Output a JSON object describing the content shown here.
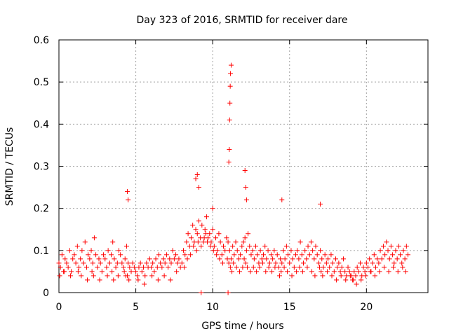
{
  "chart_data": {
    "type": "scatter",
    "title": "Day 323 of 2016, SRMTID for receiver dare",
    "xlabel": "GPS time / hours",
    "ylabel": "SRMTID / TECUs",
    "xlim": [
      0,
      24
    ],
    "ylim": [
      0,
      0.6
    ],
    "x_ticks": [
      0,
      5,
      10,
      15,
      20
    ],
    "x_tick_labels": [
      "0",
      "5",
      "10",
      "15",
      "20"
    ],
    "y_ticks": [
      0,
      0.1,
      0.2,
      0.3,
      0.4,
      0.5,
      0.6
    ],
    "y_tick_labels": [
      "0",
      "0.1",
      "0.2",
      "0.3",
      "0.4",
      "0.5",
      "0.6"
    ],
    "grid": true,
    "marker": "+",
    "series": [
      {
        "name": "SRMTID",
        "color": "#ff0000",
        "x": [
          0.0,
          0.1,
          0.2,
          0.3,
          0.4,
          0.5,
          0.6,
          0.7,
          0.8,
          0.9,
          1.0,
          1.1,
          1.2,
          1.3,
          1.4,
          1.5,
          1.6,
          1.7,
          1.8,
          1.9,
          2.0,
          2.1,
          2.2,
          2.3,
          2.4,
          2.5,
          2.6,
          2.7,
          2.8,
          2.9,
          3.0,
          3.1,
          3.2,
          3.3,
          3.4,
          3.5,
          3.6,
          3.7,
          3.8,
          3.9,
          4.0,
          4.1,
          4.2,
          4.3,
          4.4,
          4.5,
          4.6,
          4.7,
          4.8,
          4.9,
          5.0,
          5.1,
          5.2,
          5.3,
          5.4,
          5.5,
          5.6,
          5.7,
          5.8,
          5.9,
          6.0,
          6.1,
          6.2,
          6.3,
          6.4,
          6.5,
          6.6,
          6.7,
          6.8,
          6.9,
          7.0,
          7.1,
          7.2,
          7.3,
          7.4,
          7.5,
          7.6,
          7.7,
          7.8,
          7.9,
          8.0,
          8.1,
          8.2,
          8.3,
          8.4,
          8.5,
          8.6,
          8.7,
          8.8,
          8.9,
          9.0,
          9.1,
          9.2,
          9.3,
          9.4,
          9.5,
          9.6,
          9.7,
          9.8,
          9.9,
          10.0,
          10.1,
          10.2,
          10.3,
          10.4,
          10.5,
          10.6,
          10.7,
          10.8,
          10.9,
          11.0,
          11.1,
          11.2,
          11.3,
          11.4,
          11.5,
          11.6,
          11.7,
          11.8,
          11.9,
          12.0,
          12.1,
          12.2,
          12.3,
          12.4,
          12.5,
          12.6,
          12.7,
          12.8,
          12.9,
          13.0,
          13.1,
          13.2,
          13.3,
          13.4,
          13.5,
          13.6,
          13.7,
          13.8,
          13.9,
          14.0,
          14.1,
          14.2,
          14.3,
          14.4,
          14.5,
          14.6,
          14.7,
          14.8,
          14.9,
          15.0,
          15.1,
          15.2,
          15.3,
          15.4,
          15.5,
          15.6,
          15.7,
          15.8,
          15.9,
          16.0,
          16.1,
          16.2,
          16.3,
          16.4,
          16.5,
          16.6,
          16.7,
          16.8,
          16.9,
          17.0,
          17.1,
          17.2,
          17.3,
          17.4,
          17.5,
          17.6,
          17.7,
          17.8,
          17.9,
          18.0,
          18.1,
          18.2,
          18.3,
          18.4,
          18.5,
          18.6,
          18.7,
          18.8,
          18.9,
          19.0,
          19.1,
          19.2,
          19.3,
          19.4,
          19.5,
          19.6,
          19.7,
          19.8,
          19.9,
          20.0,
          20.1,
          20.2,
          20.3,
          20.4,
          20.5,
          20.6,
          20.7,
          20.8,
          20.9,
          21.0,
          21.1,
          21.2,
          21.3,
          21.4,
          21.5,
          21.6,
          21.7,
          21.8,
          21.9,
          22.0,
          22.1,
          22.2,
          22.3,
          22.4,
          22.5,
          22.6,
          22.7,
          0.05,
          0.35,
          0.75,
          1.25,
          1.45,
          1.85,
          2.15,
          2.25,
          2.65,
          3.15,
          3.45,
          3.55,
          3.85,
          4.25,
          4.35,
          4.45,
          4.55,
          5.15,
          5.55,
          6.05,
          6.45,
          6.85,
          7.25,
          7.65,
          8.15,
          8.35,
          8.55,
          8.75,
          8.95,
          9.05,
          9.25,
          9.45,
          9.55,
          9.65,
          9.85,
          10.05,
          10.25,
          10.45,
          10.65,
          10.95,
          11.05,
          11.15,
          11.25,
          11.35,
          11.55,
          11.75,
          11.95,
          12.05,
          12.15,
          12.25,
          12.45,
          12.65,
          12.85,
          13.05,
          13.25,
          13.45,
          13.65,
          13.85,
          14.05,
          14.35,
          14.45,
          14.65,
          14.85,
          15.15,
          15.45,
          15.65,
          15.85,
          16.15,
          16.45,
          16.65,
          16.95,
          17.05,
          17.15,
          17.45,
          17.75,
          18.05,
          18.35,
          18.65,
          18.95,
          19.15,
          19.35,
          19.65,
          19.95,
          20.25,
          20.55,
          20.85,
          21.15,
          21.45,
          21.75,
          22.05,
          22.35,
          22.55,
          4.45,
          4.5,
          8.9,
          9.0,
          9.1,
          11.05,
          11.08,
          11.1,
          11.12,
          11.14,
          11.16,
          11.2,
          12.1,
          12.15,
          12.2,
          9.25,
          11.0,
          14.5,
          17.0,
          10.0
        ],
        "y": [
          0.07,
          0.06,
          0.09,
          0.05,
          0.08,
          0.07,
          0.06,
          0.1,
          0.05,
          0.08,
          0.09,
          0.07,
          0.11,
          0.06,
          0.08,
          0.1,
          0.07,
          0.12,
          0.06,
          0.09,
          0.08,
          0.1,
          0.07,
          0.13,
          0.09,
          0.06,
          0.08,
          0.07,
          0.05,
          0.09,
          0.08,
          0.06,
          0.1,
          0.07,
          0.09,
          0.12,
          0.08,
          0.06,
          0.07,
          0.1,
          0.09,
          0.07,
          0.06,
          0.08,
          0.11,
          0.07,
          0.06,
          0.05,
          0.07,
          0.06,
          0.05,
          0.04,
          0.06,
          0.07,
          0.05,
          0.06,
          0.04,
          0.07,
          0.06,
          0.08,
          0.06,
          0.07,
          0.05,
          0.08,
          0.06,
          0.09,
          0.07,
          0.06,
          0.08,
          0.07,
          0.09,
          0.06,
          0.08,
          0.07,
          0.1,
          0.08,
          0.09,
          0.07,
          0.08,
          0.06,
          0.07,
          0.1,
          0.09,
          0.12,
          0.14,
          0.11,
          0.13,
          0.16,
          0.12,
          0.15,
          0.14,
          0.17,
          0.13,
          0.16,
          0.12,
          0.15,
          0.18,
          0.13,
          0.14,
          0.12,
          0.15,
          0.11,
          0.13,
          0.1,
          0.14,
          0.12,
          0.09,
          0.11,
          0.1,
          0.13,
          0.12,
          0.1,
          0.08,
          0.11,
          0.09,
          0.12,
          0.1,
          0.08,
          0.09,
          0.11,
          0.12,
          0.13,
          0.1,
          0.14,
          0.11,
          0.09,
          0.1,
          0.08,
          0.11,
          0.09,
          0.07,
          0.1,
          0.08,
          0.09,
          0.11,
          0.08,
          0.1,
          0.07,
          0.09,
          0.08,
          0.1,
          0.07,
          0.09,
          0.06,
          0.08,
          0.07,
          0.1,
          0.08,
          0.11,
          0.09,
          0.07,
          0.1,
          0.08,
          0.06,
          0.09,
          0.1,
          0.08,
          0.12,
          0.09,
          0.07,
          0.1,
          0.08,
          0.11,
          0.09,
          0.12,
          0.1,
          0.08,
          0.11,
          0.09,
          0.07,
          0.1,
          0.08,
          0.06,
          0.09,
          0.07,
          0.08,
          0.06,
          0.09,
          0.07,
          0.05,
          0.08,
          0.06,
          0.07,
          0.05,
          0.06,
          0.08,
          0.05,
          0.04,
          0.06,
          0.05,
          0.04,
          0.03,
          0.05,
          0.04,
          0.06,
          0.05,
          0.07,
          0.04,
          0.06,
          0.05,
          0.07,
          0.06,
          0.08,
          0.05,
          0.07,
          0.09,
          0.06,
          0.08,
          0.07,
          0.1,
          0.08,
          0.11,
          0.09,
          0.12,
          0.1,
          0.08,
          0.11,
          0.09,
          0.07,
          0.1,
          0.08,
          0.11,
          0.09,
          0.07,
          0.1,
          0.08,
          0.11,
          0.09,
          0.04,
          0.05,
          0.04,
          0.05,
          0.04,
          0.03,
          0.05,
          0.04,
          0.03,
          0.04,
          0.05,
          0.03,
          0.04,
          0.05,
          0.04,
          0.04,
          0.03,
          0.03,
          0.02,
          0.04,
          0.03,
          0.04,
          0.03,
          0.05,
          0.06,
          0.08,
          0.09,
          0.11,
          0.1,
          0.12,
          0.11,
          0.13,
          0.14,
          0.12,
          0.11,
          0.1,
          0.09,
          0.08,
          0.07,
          0.08,
          0.07,
          0.06,
          0.05,
          0.07,
          0.06,
          0.05,
          0.06,
          0.08,
          0.07,
          0.06,
          0.05,
          0.06,
          0.05,
          0.06,
          0.07,
          0.05,
          0.06,
          0.05,
          0.06,
          0.04,
          0.05,
          0.06,
          0.05,
          0.04,
          0.05,
          0.06,
          0.05,
          0.06,
          0.05,
          0.04,
          0.06,
          0.05,
          0.04,
          0.05,
          0.04,
          0.03,
          0.04,
          0.03,
          0.04,
          0.03,
          0.02,
          0.03,
          0.04,
          0.05,
          0.04,
          0.05,
          0.06,
          0.05,
          0.06,
          0.05,
          0.06,
          0.05,
          0.24,
          0.22,
          0.27,
          0.28,
          0.25,
          0.31,
          0.34,
          0.41,
          0.45,
          0.49,
          0.52,
          0.54,
          0.29,
          0.25,
          0.22,
          0.0,
          0.0,
          0.22,
          0.21,
          0.2
        ]
      }
    ]
  }
}
